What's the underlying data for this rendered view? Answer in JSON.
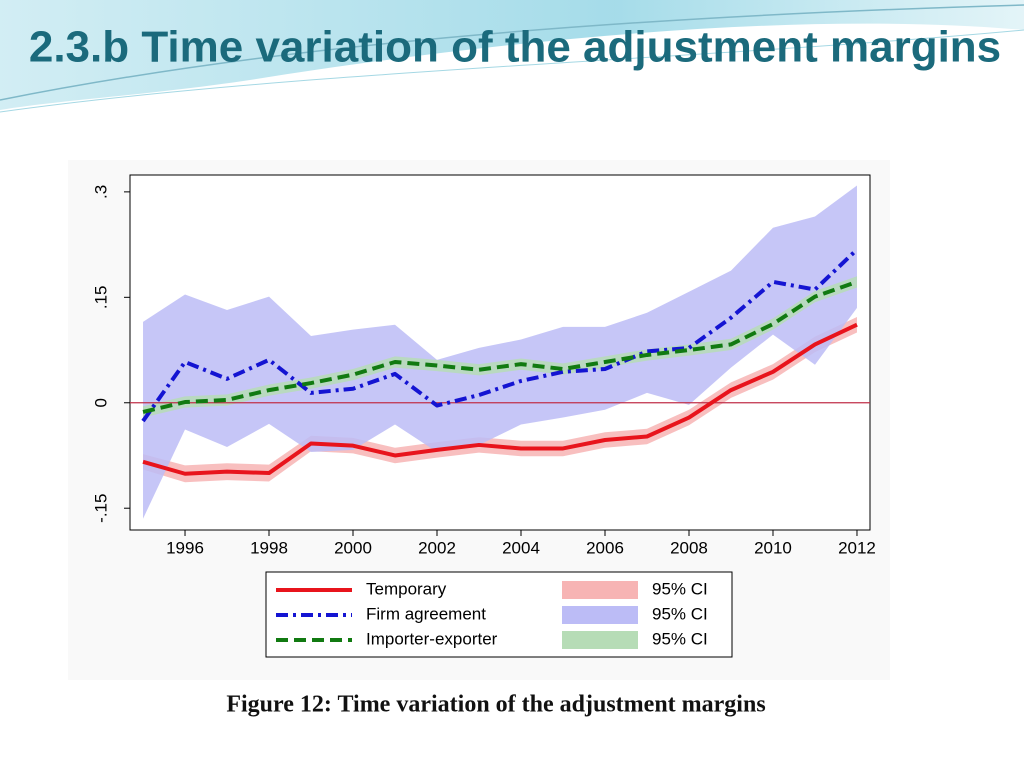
{
  "slide": {
    "title": "2.3.b Time variation of the adjustment margins",
    "caption": "Figure 12: Time variation of the adjustment margins"
  },
  "chart_data": {
    "type": "line",
    "x": [
      1995,
      1996,
      1997,
      1998,
      1999,
      2000,
      2001,
      2002,
      2003,
      2004,
      2005,
      2006,
      2007,
      2008,
      2009,
      2010,
      2011,
      2012
    ],
    "xlim": [
      1994.69,
      2012.31
    ],
    "xticks": [
      1996,
      1998,
      2000,
      2002,
      2004,
      2006,
      2008,
      2010,
      2012
    ],
    "ylim": [
      -0.181,
      0.324
    ],
    "yticks": [
      {
        "value": -0.15,
        "label": "-.15"
      },
      0,
      {
        "value": 0.15,
        "label": ".15"
      },
      {
        "value": 0.3,
        "label": ".3"
      }
    ],
    "hline": 0,
    "hline_color": "#c0304a",
    "series": [
      {
        "name": "Temporary",
        "color": "#e8141c",
        "dash": "none",
        "values": [
          -0.084,
          -0.101,
          -0.098,
          -0.1,
          -0.058,
          -0.061,
          -0.075,
          -0.067,
          -0.06,
          -0.065,
          -0.065,
          -0.053,
          -0.048,
          -0.021,
          0.018,
          0.044,
          0.083,
          0.111
        ],
        "ci_name": "95% CI",
        "ci_color": "#f7b4b4",
        "ci_lower": [
          -0.095,
          -0.113,
          -0.11,
          -0.112,
          -0.069,
          -0.072,
          -0.086,
          -0.078,
          -0.071,
          -0.076,
          -0.076,
          -0.064,
          -0.059,
          -0.032,
          0.007,
          0.033,
          0.072,
          0.1
        ],
        "ci_upper": [
          -0.073,
          -0.089,
          -0.086,
          -0.088,
          -0.047,
          -0.05,
          -0.064,
          -0.056,
          -0.049,
          -0.054,
          -0.054,
          -0.042,
          -0.037,
          -0.01,
          0.029,
          0.055,
          0.094,
          0.122
        ]
      },
      {
        "name": "Firm agreement",
        "color": "#1414d2",
        "dash": "12 5 3 5",
        "values": [
          -0.026,
          0.058,
          0.034,
          0.061,
          0.014,
          0.02,
          0.041,
          -0.004,
          0.011,
          0.031,
          0.044,
          0.048,
          0.073,
          0.078,
          0.121,
          0.172,
          0.161,
          0.218
        ],
        "ci_name": "95% CI",
        "ci_color": "#bcbcf6",
        "ci_lower": [
          -0.165,
          -0.038,
          -0.063,
          -0.03,
          -0.07,
          -0.067,
          -0.031,
          -0.07,
          -0.06,
          -0.031,
          -0.021,
          -0.01,
          0.014,
          -0.003,
          0.05,
          0.097,
          0.054,
          0.135
        ],
        "ci_upper": [
          0.115,
          0.154,
          0.132,
          0.151,
          0.095,
          0.104,
          0.111,
          0.061,
          0.078,
          0.09,
          0.108,
          0.108,
          0.128,
          0.158,
          0.188,
          0.249,
          0.265,
          0.309
        ]
      },
      {
        "name": "Importer-exporter",
        "color": "#117a11",
        "dash": "12 6",
        "values": [
          -0.013,
          0.001,
          0.004,
          0.018,
          0.028,
          0.04,
          0.058,
          0.053,
          0.047,
          0.055,
          0.048,
          0.058,
          0.068,
          0.075,
          0.083,
          0.112,
          0.151,
          0.172
        ],
        "ci_name": "95% CI",
        "ci_color": "#b6dcb6",
        "ci_lower": [
          -0.021,
          -0.007,
          -0.004,
          0.01,
          0.02,
          0.032,
          0.05,
          0.045,
          0.039,
          0.047,
          0.04,
          0.05,
          0.06,
          0.067,
          0.075,
          0.104,
          0.143,
          0.164
        ],
        "ci_upper": [
          -0.005,
          0.009,
          0.012,
          0.026,
          0.036,
          0.048,
          0.066,
          0.061,
          0.055,
          0.063,
          0.056,
          0.066,
          0.076,
          0.083,
          0.091,
          0.12,
          0.159,
          0.18
        ]
      }
    ]
  }
}
